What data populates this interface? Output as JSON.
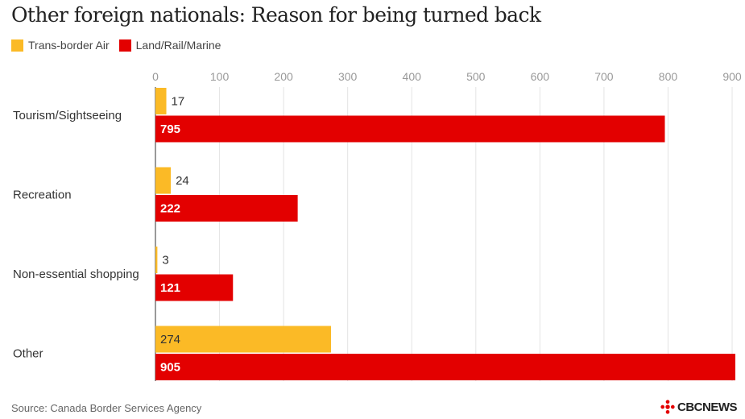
{
  "title": "Other foreign nationals: Reason for being turned back",
  "legend": [
    {
      "label": "Trans-border Air",
      "color": "#FBBA26"
    },
    {
      "label": "Land/Rail/Marine",
      "color": "#E30000"
    }
  ],
  "source": "Source: Canada Border Services Agency",
  "brand": "CBCNEWS",
  "chart_data": {
    "type": "bar",
    "orientation": "horizontal",
    "categories": [
      "Tourism/Sightseeing",
      "Recreation",
      "Non-essential shopping",
      "Other"
    ],
    "series": [
      {
        "name": "Trans-border Air",
        "color": "#FBBA26",
        "values": [
          17,
          24,
          3,
          274
        ]
      },
      {
        "name": "Land/Rail/Marine",
        "color": "#E30000",
        "values": [
          795,
          222,
          121,
          905
        ]
      }
    ],
    "x_ticks": [
      0,
      100,
      200,
      300,
      400,
      500,
      600,
      700,
      800,
      900
    ],
    "xlim": [
      0,
      905
    ],
    "grid": true,
    "legend_position": "top-left"
  }
}
